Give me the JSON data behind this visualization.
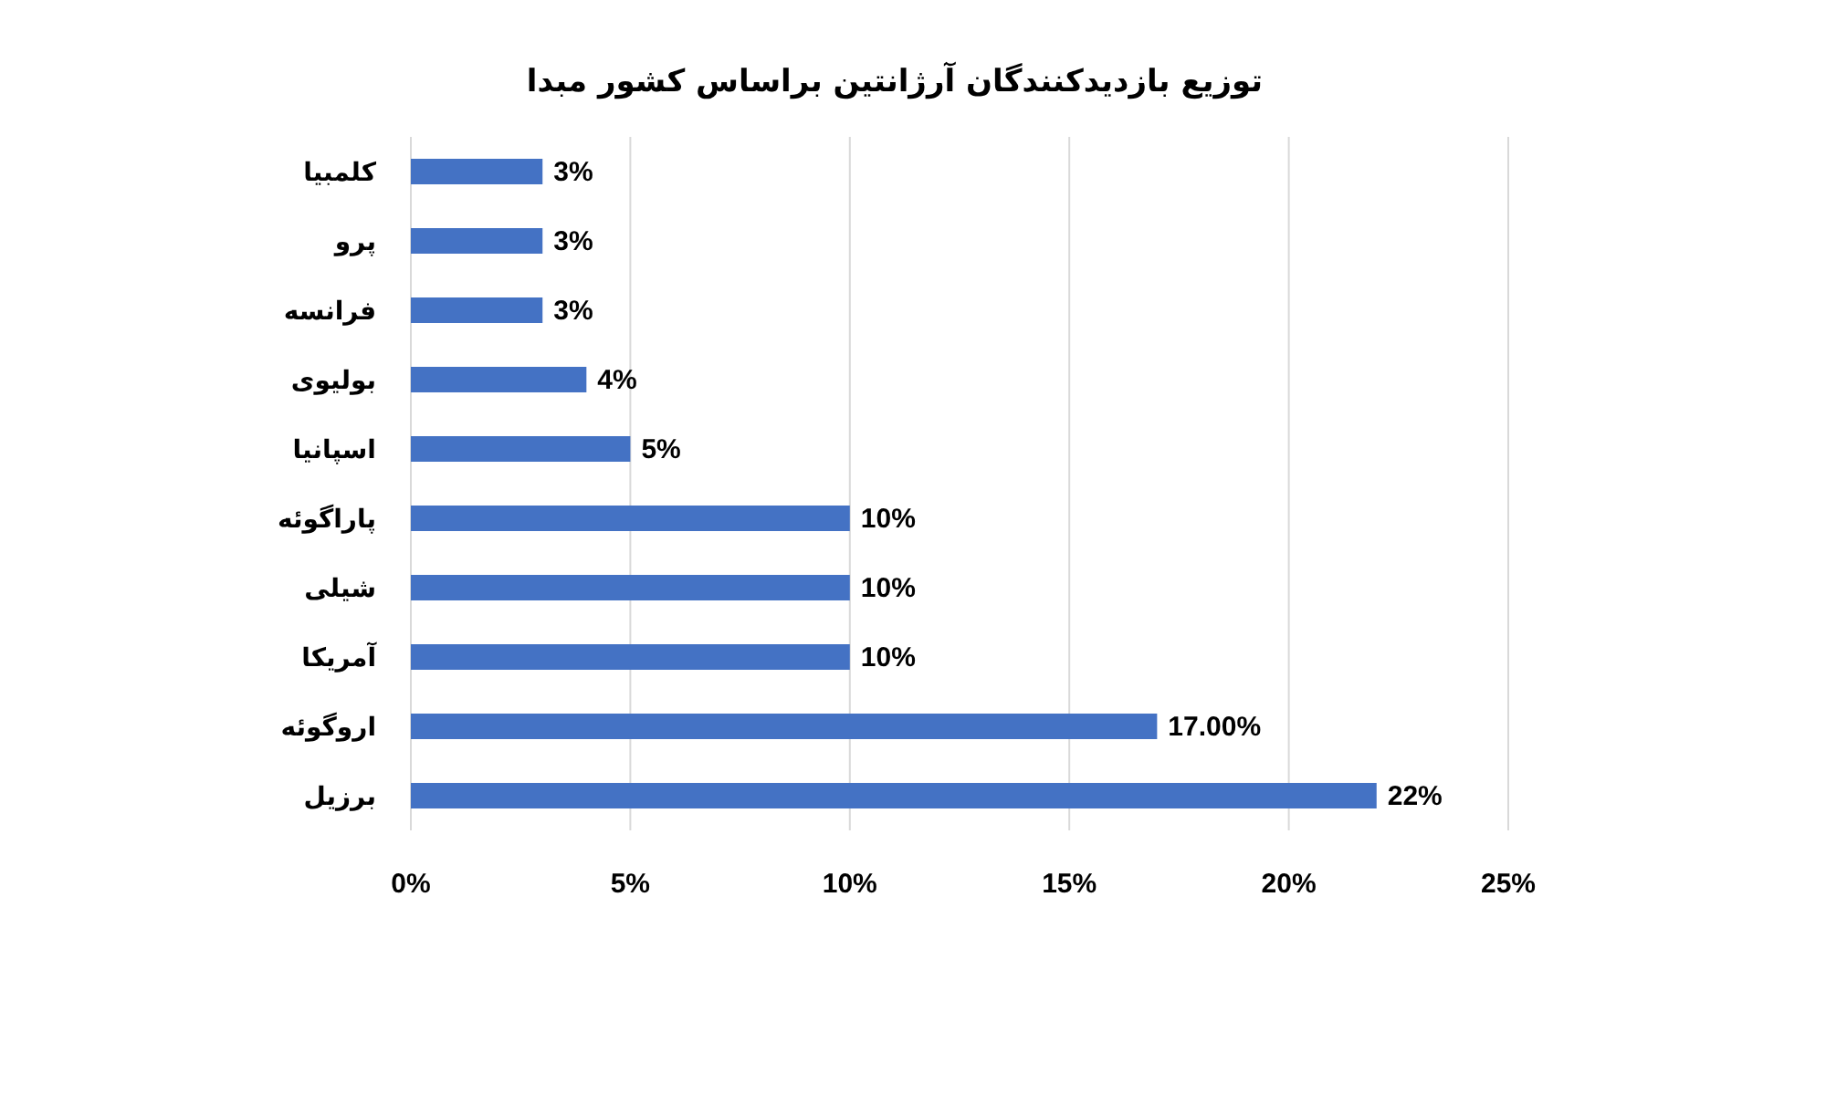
{
  "chart_data": {
    "type": "bar",
    "orientation": "horizontal",
    "title": "توزیع بازدیدکنندگان آرژانتین براساس کشور مبدا",
    "categories": [
      "کلمبیا",
      "پرو",
      "فرانسه",
      "بولیوی",
      "اسپانیا",
      "پاراگوئه",
      "شیلی",
      "آمریکا",
      "اروگوئه",
      "برزیل"
    ],
    "values": [
      3,
      3,
      3,
      4,
      5,
      10,
      10,
      10,
      17,
      22
    ],
    "value_labels": [
      "3%",
      "3%",
      "3%",
      "4%",
      "5%",
      "10%",
      "10%",
      "10%",
      "17.00%",
      "22%"
    ],
    "color": "#4472c4",
    "xlim": [
      0,
      25
    ],
    "xticks": [
      {
        "value": 0,
        "label": "0%"
      },
      {
        "value": 5,
        "label": "5%"
      },
      {
        "value": 10,
        "label": "10%"
      },
      {
        "value": 15,
        "label": "15%"
      },
      {
        "value": 20,
        "label": "20%"
      },
      {
        "value": 25,
        "label": "25%"
      }
    ],
    "grid": "x"
  }
}
